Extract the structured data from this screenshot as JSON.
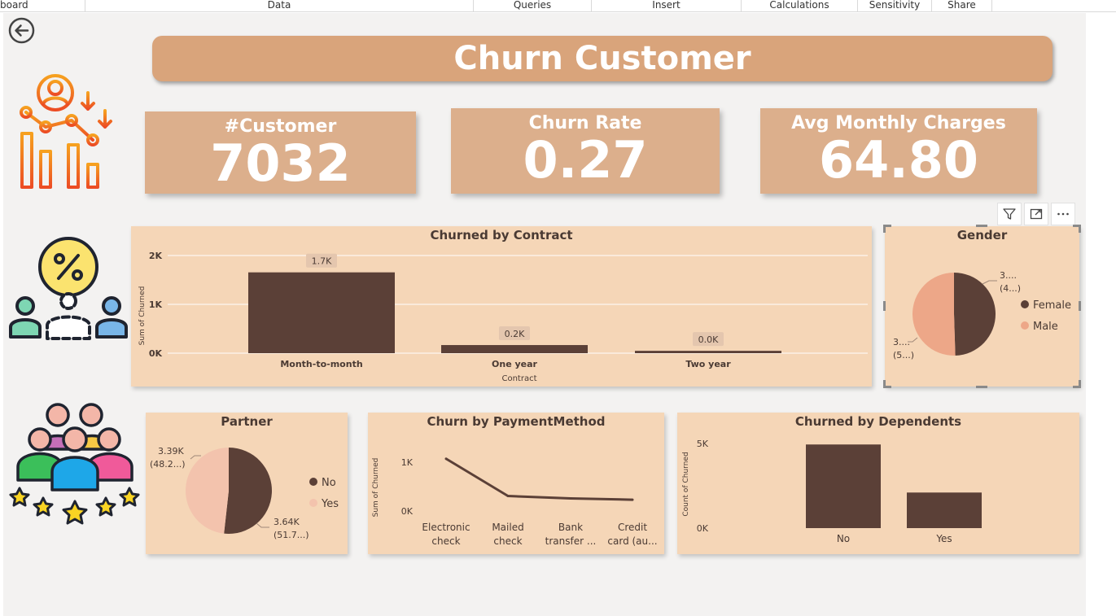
{
  "ribbon": {
    "tabs": [
      "board",
      "Data",
      "Queries",
      "Insert",
      "Calculations",
      "Sensitivity",
      "Share"
    ]
  },
  "header": {
    "title": "Churn Customer"
  },
  "kpis": [
    {
      "label": "#Customer",
      "value": "7032"
    },
    {
      "label": "Churn Rate",
      "value": "0.27"
    },
    {
      "label": "Avg Monthly Charges",
      "value": "64.80"
    }
  ],
  "contract_chart": {
    "title": "Churned by Contract",
    "ylabel": "Sum of Churned",
    "xlabel": "Contract",
    "yticks": [
      "2K",
      "1K",
      "0K"
    ]
  },
  "gender_chart": {
    "title": "Gender",
    "label_female": [
      "3....",
      "(4...)"
    ],
    "label_male": [
      "3....",
      "(5...)"
    ]
  },
  "partner_chart": {
    "title": "Partner",
    "label_yes": [
      "3.39K",
      "(48.2...)"
    ],
    "label_no": [
      "3.64K",
      "(51.7...)"
    ]
  },
  "payment_chart": {
    "title": "Churn by PaymentMethod",
    "ylabel": "Sum of Churned",
    "yticks": [
      "1K",
      "0K"
    ],
    "categories_display": [
      [
        "Electronic",
        "check"
      ],
      [
        "Mailed",
        "check"
      ],
      [
        "Bank",
        "transfer ..."
      ],
      [
        "Credit",
        "card (au..."
      ]
    ]
  },
  "dependents_chart": {
    "title": "Churned by Dependents",
    "ylabel": "Count of Churned",
    "yticks": [
      "5K",
      "0K"
    ]
  },
  "chart_data": [
    {
      "type": "bar",
      "title": "Churned by Contract",
      "categories": [
        "Month-to-month",
        "One year",
        "Two year"
      ],
      "values": [
        1655,
        166,
        48
      ],
      "data_labels": [
        "1.7K",
        "0.2K",
        "0.0K"
      ],
      "xlabel": "Contract",
      "ylabel": "Sum of Churned",
      "ylim": [
        0,
        2000
      ],
      "color": "#5b4037"
    },
    {
      "type": "pie",
      "title": "Gender",
      "categories": [
        "Female",
        "Male"
      ],
      "values": [
        49.5,
        50.5
      ],
      "colors": [
        "#5b4037",
        "#eda788"
      ],
      "legend": "right"
    },
    {
      "type": "pie",
      "title": "Partner",
      "categories": [
        "No",
        "Yes"
      ],
      "values": [
        51.7,
        48.2
      ],
      "colors": [
        "#5b4037",
        "#f3c3ad"
      ],
      "legend": "right"
    },
    {
      "type": "line",
      "title": "Churn by PaymentMethod",
      "categories": [
        "Electronic check",
        "Mailed check",
        "Bank transfer ...",
        "Credit card (au..."
      ],
      "values": [
        1071,
        308,
        258,
        232
      ],
      "ylabel": "Sum of Churned",
      "ylim": [
        0,
        1350
      ],
      "color": "#5b4037"
    },
    {
      "type": "bar",
      "title": "Churned by Dependents",
      "categories": [
        "No",
        "Yes"
      ],
      "values": [
        4933,
        2099
      ],
      "ylabel": "Count of Churned",
      "ylim": [
        0,
        6000
      ],
      "color": "#5b4037"
    }
  ]
}
